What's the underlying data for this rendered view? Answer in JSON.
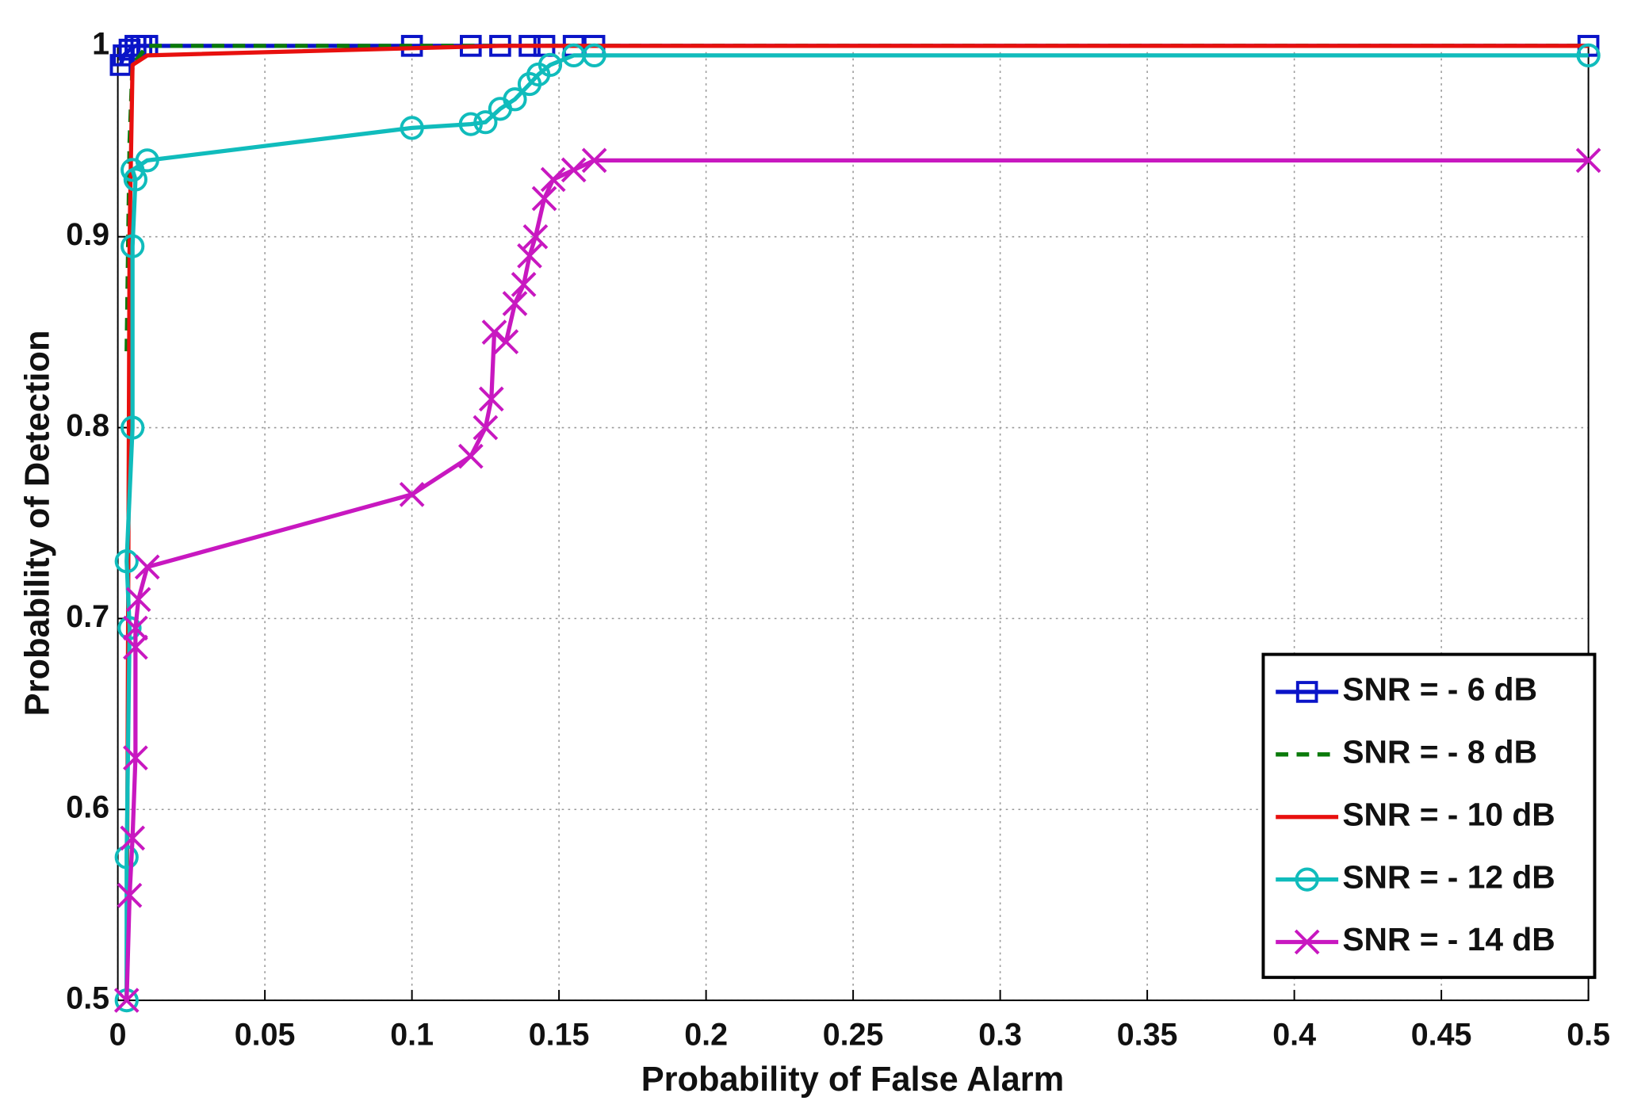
{
  "chart_data": {
    "type": "line",
    "xlabel": "Probability of False Alarm",
    "ylabel": "Probability of Detection",
    "xlim": [
      0,
      0.5
    ],
    "ylim": [
      0.5,
      1
    ],
    "xticks": [
      0,
      0.05,
      0.1,
      0.15,
      0.2,
      0.25,
      0.3,
      0.35,
      0.4,
      0.45,
      0.5
    ],
    "yticks": [
      0.5,
      0.6,
      0.7,
      0.8,
      0.9,
      1
    ],
    "grid": true,
    "legend": "lower-right",
    "series": [
      {
        "name": "SNR = - 6 dB",
        "color": "#0a14c8",
        "marker": "square",
        "dash": false,
        "x": [
          0.001,
          0.002,
          0.004,
          0.006,
          0.008,
          0.01,
          0.1,
          0.12,
          0.13,
          0.14,
          0.145,
          0.155,
          0.162,
          0.5
        ],
        "values": [
          0.99,
          0.995,
          0.998,
          1,
          1,
          1,
          1,
          1,
          1,
          1,
          1,
          1,
          1,
          1
        ]
      },
      {
        "name": "SNR = - 8 dB",
        "color": "#0a7a0a",
        "marker": "none",
        "dash": true,
        "x": [
          0.003,
          0.004,
          0.005,
          0.01,
          0.5
        ],
        "values": [
          0.84,
          0.95,
          0.99,
          1,
          1
        ]
      },
      {
        "name": "SNR = - 10 dB",
        "color": "#e8100e",
        "marker": "none",
        "dash": false,
        "x": [
          0.003,
          0.004,
          0.005,
          0.01,
          0.13,
          0.5
        ],
        "values": [
          0.5,
          0.9,
          0.99,
          0.995,
          1,
          1
        ]
      },
      {
        "name": "SNR = - 12 dB",
        "color": "#10bcbc",
        "marker": "circle",
        "dash": false,
        "x": [
          0.003,
          0.003,
          0.004,
          0.003,
          0.005,
          0.005,
          0.006,
          0.005,
          0.01,
          0.1,
          0.12,
          0.125,
          0.13,
          0.135,
          0.14,
          0.143,
          0.147,
          0.155,
          0.162,
          0.5
        ],
        "values": [
          0.5,
          0.575,
          0.695,
          0.73,
          0.8,
          0.895,
          0.93,
          0.935,
          0.94,
          0.957,
          0.959,
          0.96,
          0.967,
          0.972,
          0.98,
          0.985,
          0.99,
          0.995,
          0.995,
          0.995
        ]
      },
      {
        "name": "SNR = - 14 dB",
        "color": "#c818c0",
        "marker": "x",
        "dash": false,
        "x": [
          0.003,
          0.004,
          0.005,
          0.006,
          0.006,
          0.006,
          0.007,
          0.01,
          0.1,
          0.12,
          0.125,
          0.127,
          0.128,
          0.132,
          0.135,
          0.138,
          0.14,
          0.142,
          0.145,
          0.148,
          0.155,
          0.162,
          0.5
        ],
        "values": [
          0.5,
          0.555,
          0.585,
          0.627,
          0.685,
          0.695,
          0.71,
          0.727,
          0.765,
          0.785,
          0.8,
          0.815,
          0.85,
          0.845,
          0.865,
          0.875,
          0.89,
          0.9,
          0.92,
          0.93,
          0.935,
          0.94,
          0.94
        ]
      }
    ]
  }
}
